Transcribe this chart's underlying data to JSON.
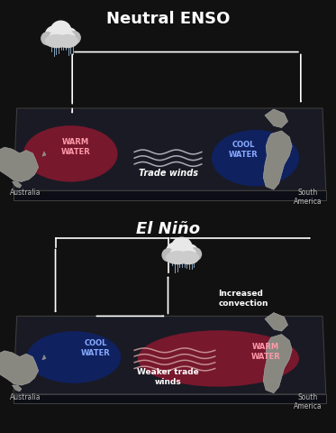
{
  "bg_color": "#111111",
  "title1": "Neutral ENSO",
  "title2": "El Niño",
  "title_color": "#ffffff",
  "warm_color_rgba": [
    0.75,
    0.1,
    0.2,
    0.6
  ],
  "cool_color_rgba": [
    0.05,
    0.15,
    0.6,
    0.6
  ],
  "arrow_color": "#ffffff",
  "panel1": {
    "warm_label": "WARM\nWATER",
    "cool_label": "COOL\nWATER",
    "wind_label": "Trade winds",
    "left_geo": "Australia",
    "right_geo": "South\nAmerica"
  },
  "panel2": {
    "cool_label": "COOL\nWATER",
    "warm_label": "WARM\nWATER",
    "wind_label": "Weaker trade\nwinds",
    "convection_label": "Increased\nconvection",
    "left_geo": "Australia",
    "right_geo": "South\nAmerica"
  }
}
